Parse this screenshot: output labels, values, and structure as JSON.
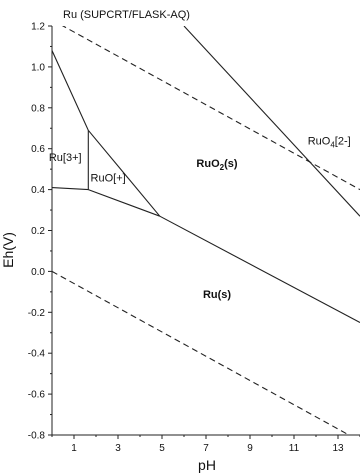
{
  "chart_data": {
    "type": "line",
    "title": "Ru (SUPCRT/FLASK-AQ)",
    "xlabel": "pH",
    "ylabel": "Eh(V)",
    "xlim": [
      0,
      14
    ],
    "ylim": [
      -0.8,
      1.2
    ],
    "x_ticks": [
      "1",
      "3",
      "5",
      "7",
      "9",
      "11",
      "13"
    ],
    "y_ticks": [
      "-0.8",
      "-0.6",
      "-0.4",
      "-0.2",
      "0.0",
      "0.2",
      "0.4",
      "0.6",
      "0.8",
      "1.0",
      "1.2"
    ],
    "series": [
      {
        "style": "dashed",
        "x": [
          0,
          14
        ],
        "y": [
          1.23,
          0.4
        ]
      },
      {
        "style": "dashed",
        "x": [
          0,
          14
        ],
        "y": [
          0.0,
          -0.83
        ]
      },
      {
        "style": "solid",
        "x": [
          0,
          1.65
        ],
        "y": [
          1.08,
          0.69
        ]
      },
      {
        "style": "solid",
        "x": [
          1.65,
          1.65
        ],
        "y": [
          0.69,
          0.4
        ]
      },
      {
        "style": "solid",
        "x": [
          0,
          1.65
        ],
        "y": [
          0.41,
          0.4
        ]
      },
      {
        "style": "solid",
        "x": [
          1.65,
          4.9
        ],
        "y": [
          0.69,
          0.27
        ]
      },
      {
        "style": "solid",
        "x": [
          1.65,
          4.9
        ],
        "y": [
          0.4,
          0.27
        ]
      },
      {
        "style": "solid",
        "x": [
          4.9,
          14
        ],
        "y": [
          0.27,
          -0.25
        ]
      },
      {
        "style": "solid",
        "x": [
          6.0,
          14
        ],
        "y": [
          1.2,
          0.27
        ]
      }
    ],
    "annotations": [
      {
        "text": "Ru[3+]",
        "x": 0.6,
        "y": 0.54,
        "bold": false
      },
      {
        "text": "RuO[+]",
        "x": 2.55,
        "y": 0.44,
        "bold": false
      },
      {
        "text": "RuO2(s)",
        "x": 7.5,
        "y": 0.51,
        "bold": true,
        "sub": "2",
        "base": "RuO",
        "suffix": "(s)"
      },
      {
        "text": "RuO4[2-]",
        "x": 12.6,
        "y": 0.62,
        "bold": false,
        "sub": "4",
        "base": "RuO",
        "suffix": "[2-]"
      },
      {
        "text": "Ru(s)",
        "x": 7.5,
        "y": -0.13,
        "bold": true
      }
    ]
  }
}
